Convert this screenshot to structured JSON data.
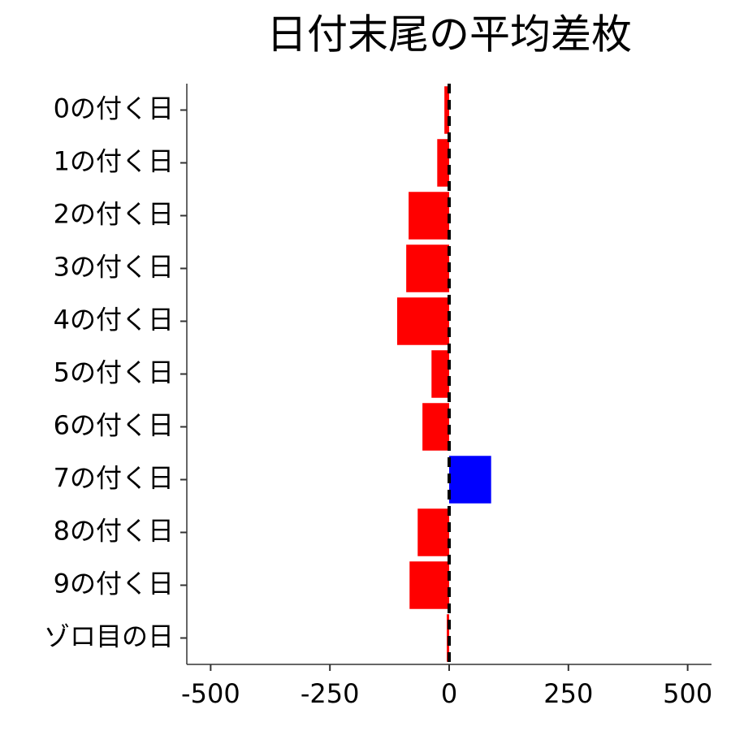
{
  "chart_data": {
    "type": "barh",
    "title": "日付末尾の平均差枚",
    "categories": [
      "0の付く日",
      "1の付く日",
      "2の付く日",
      "3の付く日",
      "4の付く日",
      "5の付く日",
      "6の付く日",
      "7の付く日",
      "8の付く日",
      "9の付く日",
      "ゾロ目の日"
    ],
    "values": [
      -10,
      -25,
      -85,
      -90,
      -109,
      -37,
      -56,
      88,
      -66,
      -83,
      -5
    ],
    "color_negative": "#ff0000",
    "color_positive": "#0000ff",
    "xlim": [
      -550,
      550
    ],
    "xticks": [
      -500,
      -250,
      0,
      250,
      500
    ],
    "vline": 0,
    "grid": false
  }
}
